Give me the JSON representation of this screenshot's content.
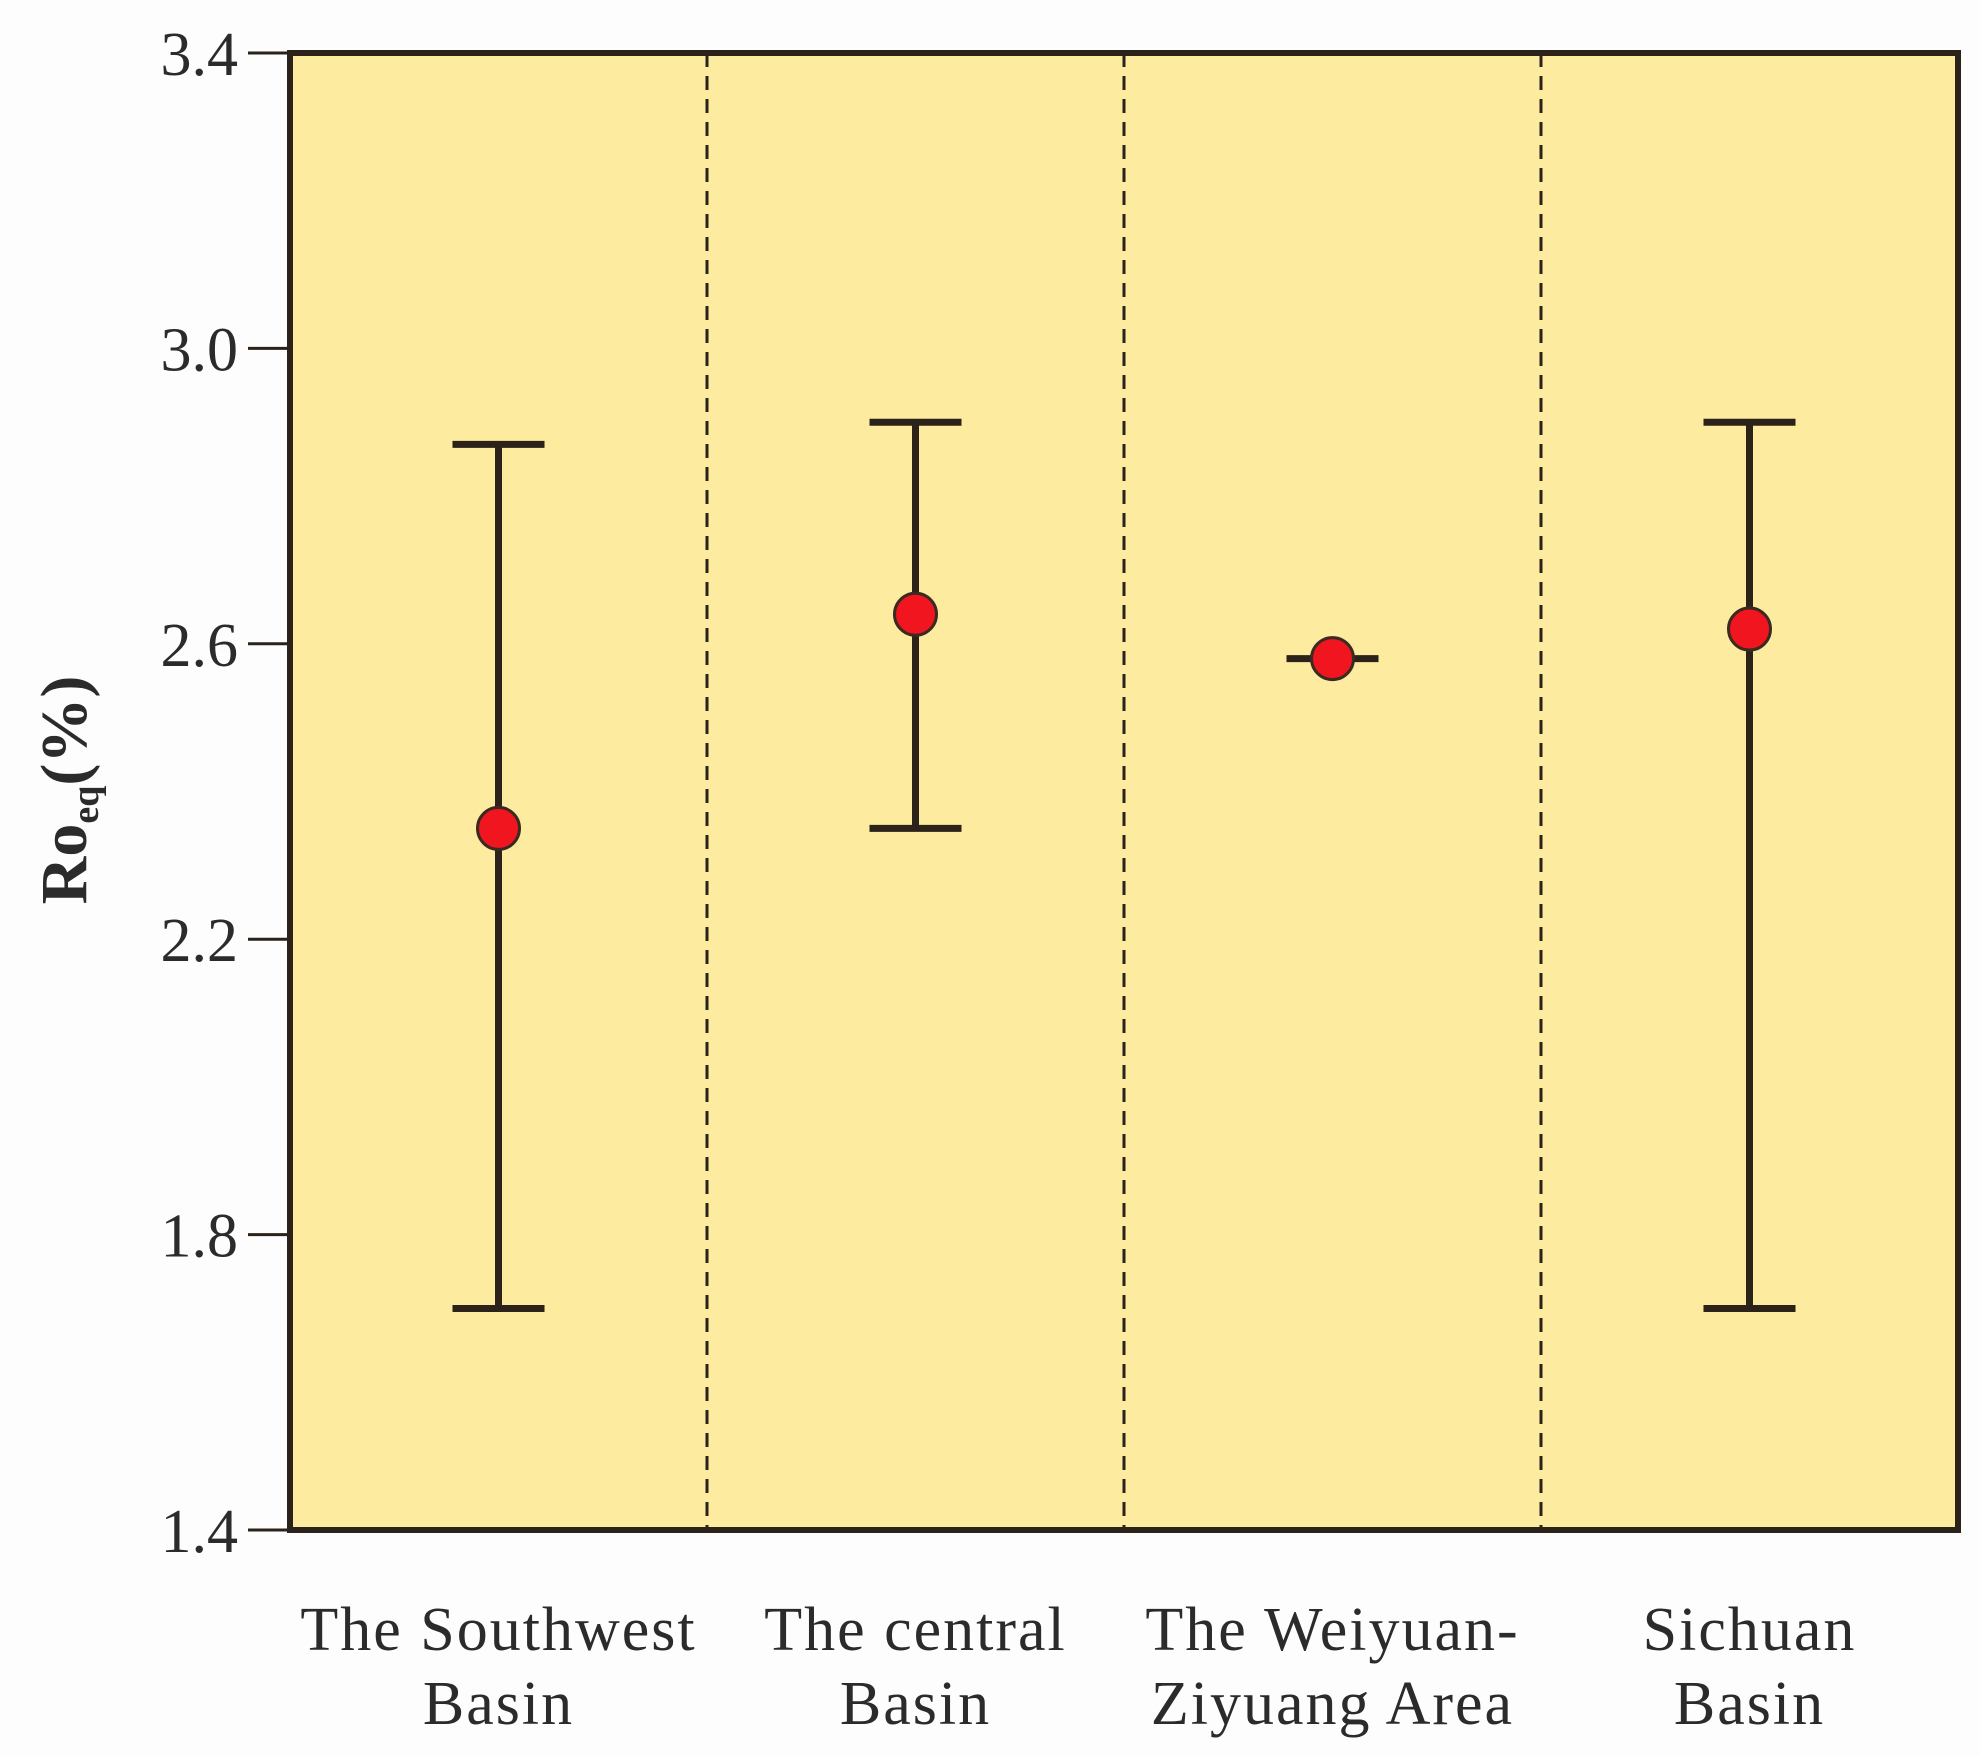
{
  "chart_data": {
    "type": "scatter",
    "subtype": "range-with-mean",
    "title": "",
    "ylabel": {
      "main": "Ro",
      "subscript": "eq",
      "unit": "(%)"
    },
    "xlabel": "",
    "ylim": [
      1.4,
      3.4
    ],
    "yticks": [
      "1.4",
      "1.8",
      "2.2",
      "2.6",
      "3.0",
      "3.4"
    ],
    "categories": [
      {
        "line1": "The Southwest",
        "line2": "Basin"
      },
      {
        "line1": "The central",
        "line2": "Basin"
      },
      {
        "line1": "The Weiyuan-",
        "line2": "Ziyuang Area"
      },
      {
        "line1": "Sichuan",
        "line2": "Basin"
      }
    ],
    "series": [
      {
        "points": [
          {
            "category": 0,
            "mean": 2.35,
            "min": 1.7,
            "max": 2.87
          },
          {
            "category": 1,
            "mean": 2.64,
            "min": 2.35,
            "max": 2.9
          },
          {
            "category": 2,
            "mean": 2.58,
            "min": 2.58,
            "max": 2.58
          },
          {
            "category": 3,
            "mean": 2.62,
            "min": 1.7,
            "max": 2.9
          }
        ]
      }
    ],
    "grid": false,
    "category_separators": "dashed",
    "colors": {
      "background": "#fdeb9f",
      "frame": "#2b221a",
      "marker": "#f0151e",
      "marker_edge": "#3a2a20"
    }
  }
}
